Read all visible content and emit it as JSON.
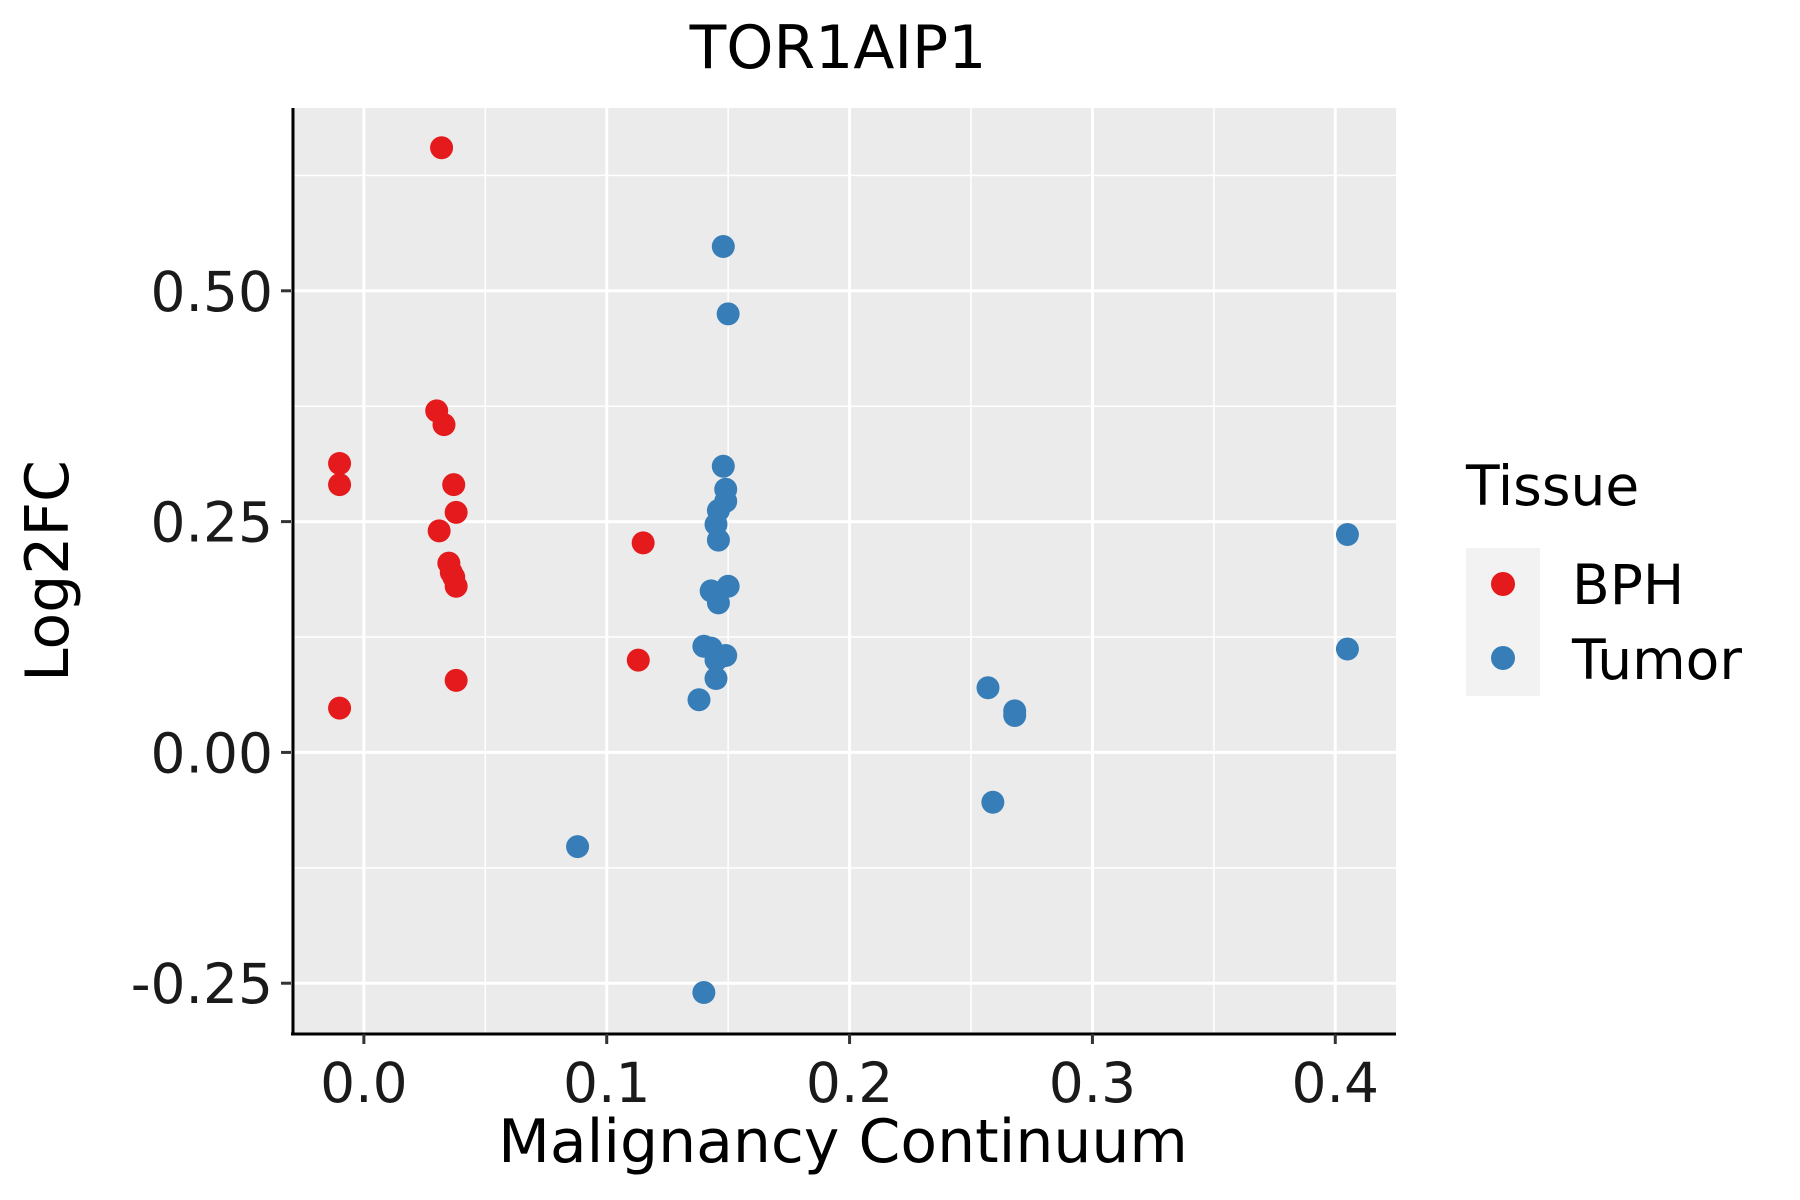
{
  "chart_data": {
    "type": "scatter",
    "title": "TOR1AIP1",
    "xlabel": "Malignancy Continuum",
    "ylabel": "Log2FC",
    "xlim": [
      -0.03,
      0.425
    ],
    "ylim": [
      -0.305,
      0.698
    ],
    "x_ticks": [
      0.0,
      0.1,
      0.2,
      0.3,
      0.4
    ],
    "x_tick_labels": [
      "0.0",
      "0.1",
      "0.2",
      "0.3",
      "0.4"
    ],
    "y_ticks": [
      -0.25,
      0.0,
      0.25,
      0.5
    ],
    "y_tick_labels": [
      "-0.25",
      "0.00",
      "0.25",
      "0.50"
    ],
    "grid": true,
    "legend": {
      "title": "Tissue",
      "position": "right"
    },
    "series": [
      {
        "name": "BPH",
        "color": "#E41A1C",
        "points": [
          [
            0.032,
            0.655
          ],
          [
            0.03,
            0.37
          ],
          [
            0.033,
            0.355
          ],
          [
            -0.01,
            0.313
          ],
          [
            -0.01,
            0.29
          ],
          [
            0.037,
            0.29
          ],
          [
            0.038,
            0.26
          ],
          [
            0.031,
            0.24
          ],
          [
            0.035,
            0.205
          ],
          [
            0.036,
            0.195
          ],
          [
            0.037,
            0.19
          ],
          [
            0.038,
            0.18
          ],
          [
            0.038,
            0.078
          ],
          [
            -0.01,
            0.048
          ],
          [
            0.115,
            0.227
          ],
          [
            0.113,
            0.1
          ]
        ]
      },
      {
        "name": "Tumor",
        "color": "#377EB8",
        "points": [
          [
            0.148,
            0.548
          ],
          [
            0.15,
            0.475
          ],
          [
            0.148,
            0.31
          ],
          [
            0.149,
            0.285
          ],
          [
            0.149,
            0.272
          ],
          [
            0.146,
            0.262
          ],
          [
            0.145,
            0.247
          ],
          [
            0.146,
            0.23
          ],
          [
            0.143,
            0.175
          ],
          [
            0.15,
            0.18
          ],
          [
            0.146,
            0.162
          ],
          [
            0.14,
            0.115
          ],
          [
            0.143,
            0.113
          ],
          [
            0.149,
            0.105
          ],
          [
            0.145,
            0.1
          ],
          [
            0.145,
            0.08
          ],
          [
            0.138,
            0.057
          ],
          [
            0.088,
            -0.102
          ],
          [
            0.14,
            -0.26
          ],
          [
            0.257,
            0.07
          ],
          [
            0.268,
            0.045
          ],
          [
            0.268,
            0.04
          ],
          [
            0.259,
            -0.054
          ],
          [
            0.405,
            0.236
          ],
          [
            0.405,
            0.112
          ]
        ]
      }
    ]
  }
}
